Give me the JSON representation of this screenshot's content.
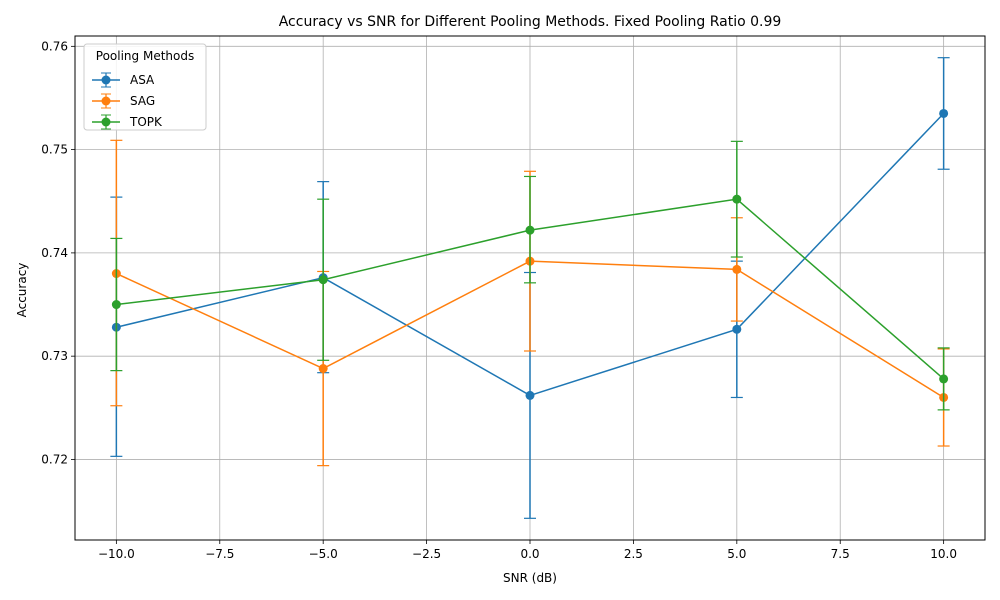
{
  "chart_data": {
    "type": "line",
    "title": "Accuracy vs SNR for Different Pooling Methods. Fixed Pooling Ratio 0.99",
    "xlabel": "SNR (dB)",
    "ylabel": "Accuracy",
    "xlim": [
      -11.0,
      11.0
    ],
    "ylim": [
      0.7122,
      0.761
    ],
    "xticks": [
      -10.0,
      -7.5,
      -5.0,
      -2.5,
      0.0,
      2.5,
      5.0,
      7.5,
      10.0
    ],
    "xtick_labels": [
      "−10.0",
      "−7.5",
      "−5.0",
      "−2.5",
      "0.0",
      "2.5",
      "5.0",
      "7.5",
      "10.0"
    ],
    "yticks": [
      0.72,
      0.73,
      0.74,
      0.75,
      0.76
    ],
    "ytick_labels": [
      "0.72",
      "0.73",
      "0.74",
      "0.75",
      "0.76"
    ],
    "grid": true,
    "legend": {
      "title": "Pooling Methods",
      "placement": "top-left"
    },
    "x": [
      -10,
      -5,
      0,
      5,
      10
    ],
    "series": [
      {
        "name": "ASA",
        "color": "#1f77b4",
        "values": [
          0.7328,
          0.7376,
          0.7262,
          0.7326,
          0.7535
        ],
        "err_low": [
          0.7203,
          0.7284,
          0.7143,
          0.726,
          0.7481
        ],
        "err_high": [
          0.7454,
          0.7469,
          0.7381,
          0.7392,
          0.7589
        ]
      },
      {
        "name": "SAG",
        "color": "#ff7f0e",
        "values": [
          0.738,
          0.7288,
          0.7392,
          0.7384,
          0.726
        ],
        "err_low": [
          0.7252,
          0.7194,
          0.7305,
          0.7334,
          0.7213
        ],
        "err_high": [
          0.7509,
          0.7382,
          0.7479,
          0.7434,
          0.7307
        ]
      },
      {
        "name": "TOPK",
        "color": "#2ca02c",
        "values": [
          0.735,
          0.7374,
          0.7422,
          0.7452,
          0.7278
        ],
        "err_low": [
          0.7286,
          0.7296,
          0.7371,
          0.7396,
          0.7248
        ],
        "err_high": [
          0.7414,
          0.7452,
          0.7474,
          0.7508,
          0.7308
        ]
      }
    ]
  }
}
